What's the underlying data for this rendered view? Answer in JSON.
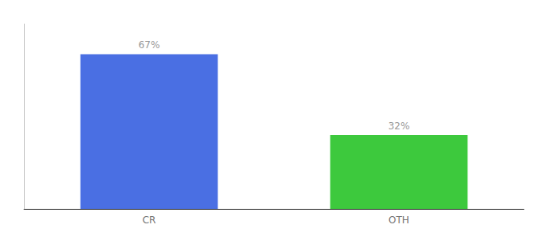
{
  "chart_data": {
    "type": "bar",
    "categories": [
      "CR",
      "OTH"
    ],
    "values": [
      67,
      32
    ],
    "value_labels": [
      "67%",
      "32%"
    ],
    "colors": [
      "#4A6FE3",
      "#3DC93D"
    ],
    "ylim": [
      0,
      80
    ],
    "data_labels": true,
    "tick_labels": "x",
    "grid": false
  }
}
